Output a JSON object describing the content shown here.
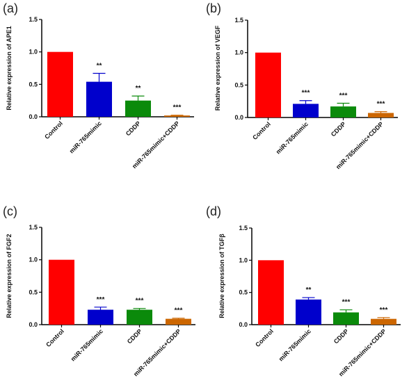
{
  "chart_data": [
    {
      "panel": "(a)",
      "type": "bar",
      "categories": [
        "Control",
        "miR-765mimic",
        "CDDP",
        "miR-765mimic+CDDP"
      ],
      "values": [
        1.0,
        0.54,
        0.25,
        0.02
      ],
      "errors": [
        0.0,
        0.13,
        0.07,
        0.005
      ],
      "significance": [
        "",
        "**",
        "**",
        "***"
      ],
      "colors": [
        "#ff0000",
        "#0000cc",
        "#0b8a0b",
        "#cc6600"
      ],
      "ylabel": "Relative expression of APE1",
      "ylim": [
        0,
        1.5
      ],
      "yticks": [
        "0.0",
        "0.5",
        "1.0",
        "1.5"
      ]
    },
    {
      "panel": "(b)",
      "type": "bar",
      "categories": [
        "Control",
        "miR-765mimic",
        "CDDP",
        "miR-765mimic+CDDP"
      ],
      "values": [
        1.0,
        0.21,
        0.17,
        0.07
      ],
      "errors": [
        0.0,
        0.05,
        0.05,
        0.02
      ],
      "significance": [
        "",
        "***",
        "***",
        "***"
      ],
      "colors": [
        "#ff0000",
        "#0000cc",
        "#0b8a0b",
        "#cc6600"
      ],
      "ylabel": "Relative expression of VEGF",
      "ylim": [
        0,
        1.5
      ],
      "yticks": [
        "0.0",
        "0.5",
        "1.0",
        "1.5"
      ]
    },
    {
      "panel": "(c)",
      "type": "bar",
      "categories": [
        "Control",
        "miR-765mimic",
        "CDDP",
        "miR-765mimic+CDDP"
      ],
      "values": [
        1.0,
        0.23,
        0.23,
        0.09
      ],
      "errors": [
        0.0,
        0.04,
        0.02,
        0.01
      ],
      "significance": [
        "",
        "***",
        "***",
        "***"
      ],
      "colors": [
        "#ff0000",
        "#0000cc",
        "#0b8a0b",
        "#cc6600"
      ],
      "ylabel": "Relative expression of FGF2",
      "ylim": [
        0,
        1.5
      ],
      "yticks": [
        "0.0",
        "0.5",
        "1.0",
        "1.5"
      ]
    },
    {
      "panel": "(d)",
      "type": "bar",
      "categories": [
        "Control",
        "miR-765mimic",
        "CDDP",
        "miR-765mimic+CDDP"
      ],
      "values": [
        1.0,
        0.39,
        0.19,
        0.09
      ],
      "errors": [
        0.0,
        0.03,
        0.04,
        0.02
      ],
      "significance": [
        "",
        "**",
        "***",
        "***"
      ],
      "colors": [
        "#ff0000",
        "#0000cc",
        "#0b8a0b",
        "#cc6600"
      ],
      "ylabel": "Relative expression of TGFβ",
      "ylim": [
        0,
        1.5
      ],
      "yticks": [
        "0.0",
        "0.5",
        "1.0",
        "1.5"
      ]
    }
  ]
}
